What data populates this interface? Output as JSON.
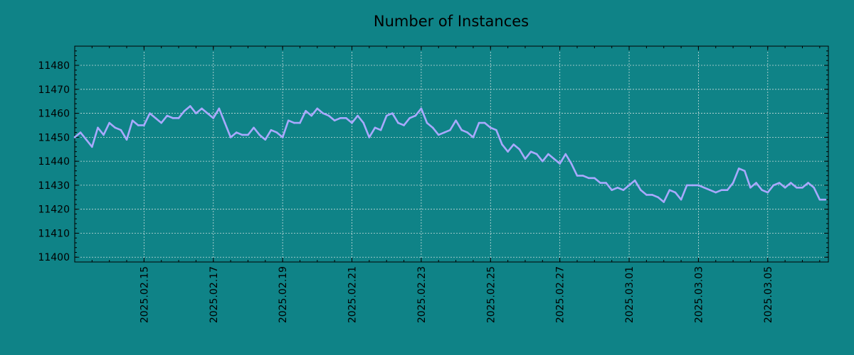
{
  "chart_data": {
    "type": "line",
    "title": "Number of Instances",
    "xlabel": "",
    "ylabel": "",
    "xlim": [
      "2025-02-13T00:00",
      "2025-03-06T18:00"
    ],
    "ylim": [
      11398,
      11488
    ],
    "yticks": [
      11400,
      11410,
      11420,
      11430,
      11440,
      11450,
      11460,
      11470,
      11480
    ],
    "xticks": [
      "2025.02.15",
      "2025.02.17",
      "2025.02.19",
      "2025.02.21",
      "2025.02.23",
      "2025.02.25",
      "2025.02.27",
      "2025.03.01",
      "2025.03.03",
      "2025.03.05"
    ],
    "grid": true,
    "line_color": "#a9a9ff",
    "background_color": "#0f8387",
    "series": [
      {
        "x": [
          "2025-02-13T00:00",
          "2025-02-13T04:00",
          "2025-02-13T08:00",
          "2025-02-13T12:00",
          "2025-02-13T16:00",
          "2025-02-13T20:00",
          "2025-02-14T00:00",
          "2025-02-14T04:00",
          "2025-02-14T08:00",
          "2025-02-14T12:00",
          "2025-02-14T16:00",
          "2025-02-14T20:00",
          "2025-02-15T00:00",
          "2025-02-15T04:00",
          "2025-02-15T08:00",
          "2025-02-15T12:00",
          "2025-02-15T16:00",
          "2025-02-15T20:00",
          "2025-02-16T00:00",
          "2025-02-16T04:00",
          "2025-02-16T08:00",
          "2025-02-16T12:00",
          "2025-02-16T16:00",
          "2025-02-16T20:00",
          "2025-02-17T00:00",
          "2025-02-17T04:00",
          "2025-02-17T08:00",
          "2025-02-17T12:00",
          "2025-02-17T16:00",
          "2025-02-17T20:00",
          "2025-02-18T00:00",
          "2025-02-18T04:00",
          "2025-02-18T08:00",
          "2025-02-18T12:00",
          "2025-02-18T16:00",
          "2025-02-18T20:00",
          "2025-02-19T00:00",
          "2025-02-19T04:00",
          "2025-02-19T08:00",
          "2025-02-19T12:00",
          "2025-02-19T16:00",
          "2025-02-19T20:00",
          "2025-02-20T00:00",
          "2025-02-20T04:00",
          "2025-02-20T08:00",
          "2025-02-20T12:00",
          "2025-02-20T16:00",
          "2025-02-20T20:00",
          "2025-02-21T00:00",
          "2025-02-21T04:00",
          "2025-02-21T08:00",
          "2025-02-21T12:00",
          "2025-02-21T16:00",
          "2025-02-21T20:00",
          "2025-02-22T00:00",
          "2025-02-22T04:00",
          "2025-02-22T08:00",
          "2025-02-22T12:00",
          "2025-02-22T16:00",
          "2025-02-22T20:00",
          "2025-02-23T00:00",
          "2025-02-23T04:00",
          "2025-02-23T08:00",
          "2025-02-23T12:00",
          "2025-02-23T16:00",
          "2025-02-23T20:00",
          "2025-02-24T00:00",
          "2025-02-24T04:00",
          "2025-02-24T08:00",
          "2025-02-24T12:00",
          "2025-02-24T16:00",
          "2025-02-24T20:00",
          "2025-02-25T00:00",
          "2025-02-25T04:00",
          "2025-02-25T08:00",
          "2025-02-25T12:00",
          "2025-02-25T16:00",
          "2025-02-25T20:00",
          "2025-02-26T00:00",
          "2025-02-26T04:00",
          "2025-02-26T08:00",
          "2025-02-26T12:00",
          "2025-02-26T16:00",
          "2025-02-26T20:00",
          "2025-02-27T00:00",
          "2025-02-27T04:00",
          "2025-02-27T08:00",
          "2025-02-27T12:00",
          "2025-02-27T16:00",
          "2025-02-27T20:00",
          "2025-02-28T00:00",
          "2025-02-28T04:00",
          "2025-02-28T08:00",
          "2025-02-28T12:00",
          "2025-02-28T16:00",
          "2025-02-28T20:00",
          "2025-03-01T00:00",
          "2025-03-01T04:00",
          "2025-03-01T08:00",
          "2025-03-01T12:00",
          "2025-03-01T16:00",
          "2025-03-01T20:00",
          "2025-03-02T00:00",
          "2025-03-02T04:00",
          "2025-03-02T08:00",
          "2025-03-02T12:00",
          "2025-03-02T16:00",
          "2025-03-02T20:00",
          "2025-03-03T00:00",
          "2025-03-03T04:00",
          "2025-03-03T08:00",
          "2025-03-03T12:00",
          "2025-03-03T16:00",
          "2025-03-03T20:00",
          "2025-03-04T00:00",
          "2025-03-04T04:00",
          "2025-03-04T08:00",
          "2025-03-04T12:00",
          "2025-03-04T16:00",
          "2025-03-04T20:00",
          "2025-03-05T00:00",
          "2025-03-05T04:00",
          "2025-03-05T08:00",
          "2025-03-05T12:00",
          "2025-03-05T16:00",
          "2025-03-05T20:00",
          "2025-03-06T00:00",
          "2025-03-06T04:00",
          "2025-03-06T08:00",
          "2025-03-06T12:00",
          "2025-03-06T16:00"
        ],
        "y": [
          11450,
          11452,
          11449,
          11446,
          11454,
          11451,
          11456,
          11454,
          11453,
          11449,
          11457,
          11455,
          11455,
          11460,
          11458,
          11456,
          11459,
          11458,
          11458,
          11461,
          11463,
          11460,
          11462,
          11460,
          11458,
          11462,
          11456,
          11450,
          11452,
          11451,
          11451,
          11454,
          11451,
          11449,
          11453,
          11452,
          11450,
          11457,
          11456,
          11456,
          11461,
          11459,
          11462,
          11460,
          11459,
          11457,
          11458,
          11458,
          11456,
          11459,
          11456,
          11450,
          11454,
          11453,
          11459,
          11460,
          11456,
          11455,
          11458,
          11459,
          11462,
          11456,
          11454,
          11451,
          11452,
          11453,
          11457,
          11453,
          11452,
          11450,
          11456,
          11456,
          11454,
          11453,
          11447,
          11444,
          11447,
          11445,
          11441,
          11444,
          11443,
          11440,
          11443,
          11441,
          11439,
          11443,
          11439,
          11434,
          11434,
          11433,
          11433,
          11431,
          11431,
          11428,
          11429,
          11428,
          11430,
          11432,
          11428,
          11426,
          11426,
          11425,
          11423,
          11428,
          11427,
          11424,
          11430,
          11430,
          11430,
          11429,
          11428,
          11427,
          11428,
          11428,
          11431,
          11437,
          11436,
          11429,
          11431,
          11428,
          11427,
          11430,
          11431,
          11429,
          11431,
          11429,
          11429,
          11431,
          11429,
          11424,
          11424
        ]
      }
    ]
  }
}
